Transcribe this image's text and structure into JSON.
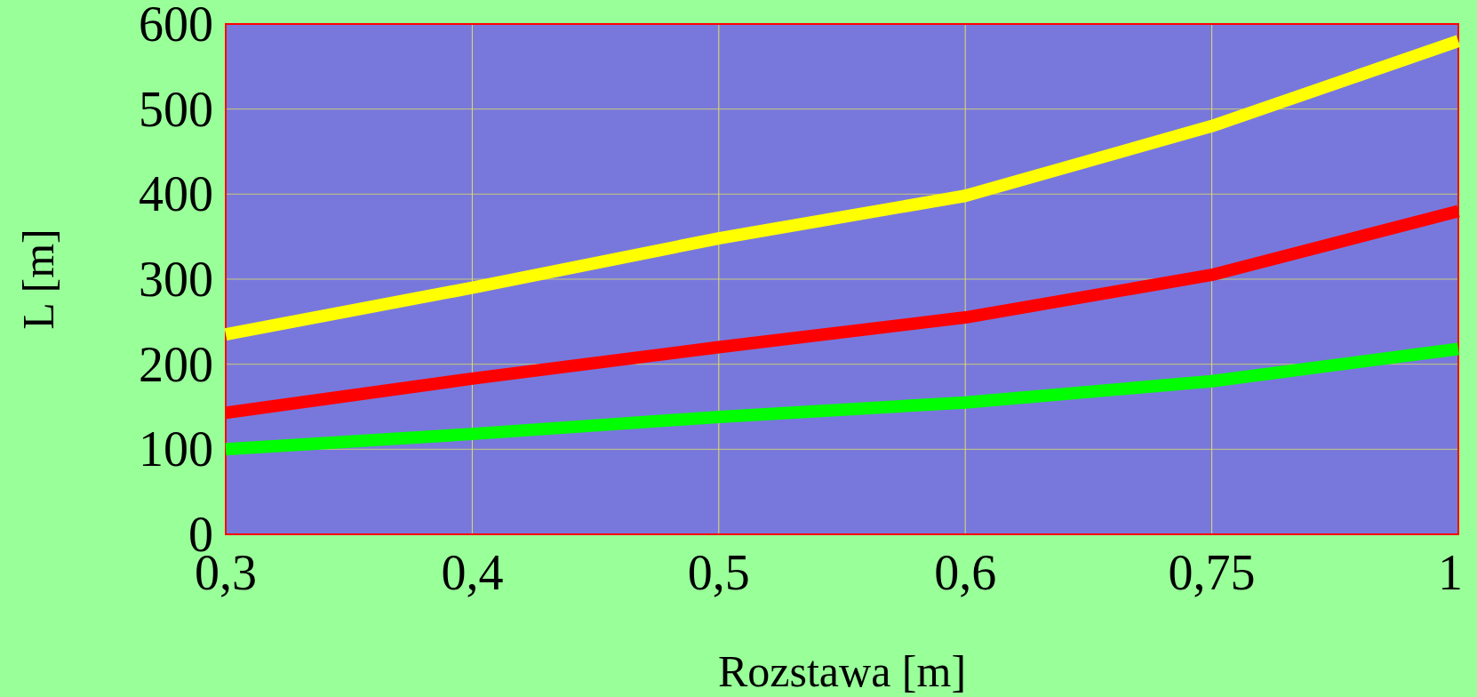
{
  "chart_data": {
    "type": "line",
    "xlabel": "Rozstawa [m]",
    "ylabel": "L [m]",
    "categories": [
      "0,3",
      "0,4",
      "0,5",
      "0,6",
      "0,75",
      "1"
    ],
    "series": [
      {
        "color": "#ffff00",
        "values": [
          235,
          290,
          348,
          398,
          480,
          580
        ]
      },
      {
        "color": "#ff0000",
        "values": [
          143,
          183,
          220,
          255,
          305,
          380
        ]
      },
      {
        "color": "#00ff00",
        "values": [
          100,
          118,
          138,
          155,
          180,
          218
        ]
      }
    ],
    "ylim": [
      0,
      600
    ],
    "yticks": [
      0,
      100,
      200,
      300,
      400,
      500,
      600
    ],
    "grid": true
  }
}
